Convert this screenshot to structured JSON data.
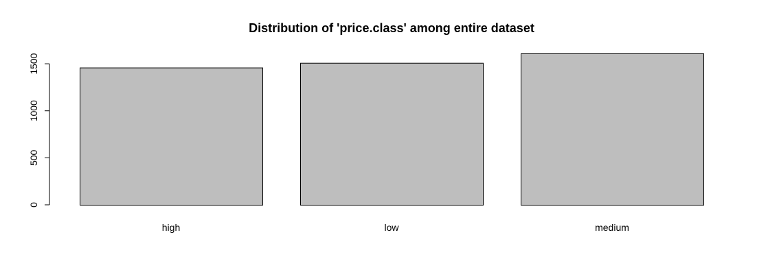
{
  "chart_data": {
    "type": "bar",
    "title": "Distribution of 'price.class' among entire dataset",
    "xlabel": "",
    "ylabel": "",
    "categories": [
      "high",
      "low",
      "medium"
    ],
    "values": [
      1460,
      1510,
      1610
    ],
    "ylim": [
      0,
      1610
    ],
    "yticks": [
      0,
      500,
      1000,
      1500
    ],
    "ytick_labels": [
      "0",
      "500",
      "1000",
      "1500"
    ],
    "grid": false,
    "bar_color": "#bebebe",
    "border_color": "#000000"
  }
}
